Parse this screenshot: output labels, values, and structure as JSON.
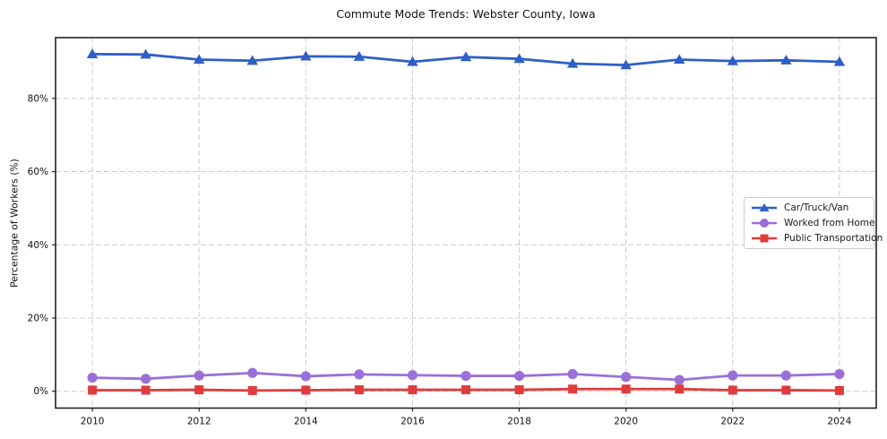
{
  "chart_data": {
    "type": "line",
    "title": "Commute Mode Trends: Webster County, Iowa",
    "xlabel": "",
    "ylabel": "Percentage of Workers (%)",
    "x": [
      2010,
      2011,
      2012,
      2013,
      2014,
      2015,
      2016,
      2017,
      2018,
      2019,
      2020,
      2021,
      2022,
      2023,
      2024
    ],
    "x_ticks": [
      2010,
      2012,
      2014,
      2016,
      2018,
      2020,
      2022,
      2024
    ],
    "x_tick_labels": [
      "2010",
      "2012",
      "2014",
      "2016",
      "2018",
      "2020",
      "2022",
      "2024"
    ],
    "y_ticks": [
      0,
      20,
      40,
      60,
      80
    ],
    "y_tick_labels": [
      "0%",
      "20%",
      "40%",
      "60%",
      "80%"
    ],
    "xlim": [
      2009.31,
      2024.69
    ],
    "ylim": [
      -4.6,
      96.6
    ],
    "grid": true,
    "grid_style": "dashed",
    "legend_position": "center-right",
    "series": [
      {
        "name": "Car/Truck/Van",
        "color": "#2e5fc7",
        "marker": "triangle",
        "values": [
          92.1,
          92.0,
          90.6,
          90.3,
          91.5,
          91.4,
          90.0,
          91.3,
          90.8,
          89.5,
          89.1,
          90.6,
          90.2,
          90.4,
          90.0
        ]
      },
      {
        "name": "Worked from Home",
        "color": "#9a70d8",
        "marker": "circle",
        "values": [
          3.7,
          3.4,
          4.3,
          5.0,
          4.1,
          4.6,
          4.4,
          4.2,
          4.2,
          4.7,
          3.9,
          3.1,
          4.3,
          4.3,
          4.7
        ]
      },
      {
        "name": "Public Transportation",
        "color": "#e03c3c",
        "marker": "square",
        "values": [
          0.3,
          0.3,
          0.4,
          0.2,
          0.3,
          0.4,
          0.4,
          0.4,
          0.4,
          0.6,
          0.6,
          0.6,
          0.3,
          0.3,
          0.2
        ]
      }
    ]
  },
  "style": {
    "grid_color": "#cccccc",
    "spine_color": "#141414",
    "tick_color": "#262626",
    "text_color": "#111111"
  }
}
